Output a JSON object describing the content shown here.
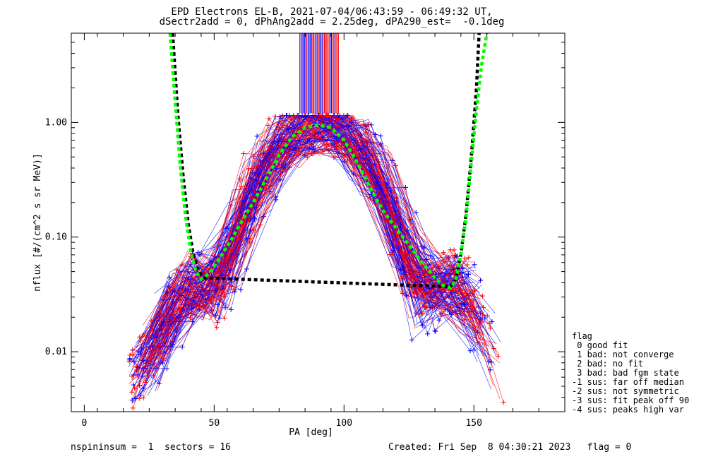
{
  "chart_data": {
    "type": "line",
    "title": "EPD Electrons EL-B, 2021-07-04/06:43:59 - 06:49:32 UT,",
    "subtitle": "dSectr2add = 0, dPhAng2add = 2.25deg, dPA290_est=  -0.1deg",
    "xlabel": "PA [deg]",
    "ylabel": "nflux [#/(cm^2 s sr MeV)]",
    "xlim": [
      -5,
      185
    ],
    "ylim": [
      0.003,
      6
    ],
    "yscale": "log",
    "xticks": [
      0,
      50,
      100,
      150
    ],
    "yticks": [
      0.01,
      0.1,
      1.0
    ],
    "ytick_labels": [
      "0.01",
      "0.10",
      "1.00"
    ],
    "grid": false,
    "series": [
      {
        "color": "#00ff00",
        "style": "dashed-fit",
        "x": [
          33,
          35,
          37,
          39,
          41,
          43,
          45,
          48,
          52,
          56,
          60,
          65,
          70,
          75,
          80,
          85,
          90,
          95,
          100,
          105,
          110,
          115,
          120,
          125,
          130,
          135,
          138,
          141,
          143,
          145,
          147,
          149,
          151,
          153,
          155
        ],
        "y": [
          6.0,
          1.5,
          0.4,
          0.15,
          0.075,
          0.05,
          0.043,
          0.048,
          0.065,
          0.09,
          0.13,
          0.2,
          0.32,
          0.52,
          0.75,
          0.9,
          0.95,
          0.9,
          0.7,
          0.45,
          0.27,
          0.17,
          0.12,
          0.085,
          0.06,
          0.044,
          0.038,
          0.036,
          0.042,
          0.07,
          0.15,
          0.45,
          1.3,
          3.2,
          6.0
        ]
      },
      {
        "color": "#000000",
        "style": "dashed-fit",
        "x": [
          34,
          36,
          38,
          40,
          42,
          44,
          46,
          139,
          141,
          143,
          145,
          147,
          149,
          151,
          152
        ],
        "y": [
          6.0,
          1.2,
          0.35,
          0.13,
          0.07,
          0.05,
          0.044,
          0.037,
          0.037,
          0.043,
          0.07,
          0.16,
          0.5,
          2.0,
          6.0
        ]
      }
    ],
    "data_cloud": {
      "colors": [
        "#ff0000",
        "#0000ff"
      ],
      "marker": "+",
      "pa_range": [
        17,
        162
      ],
      "peak_pa": 92,
      "peak_value": 1.0,
      "shoulder_value_min": 0.005,
      "shoulder_value_max": 0.05
    },
    "spike_region": {
      "pa_range": [
        83,
        98
      ],
      "y_from": 1.2,
      "y_to": 6.0
    }
  },
  "legend": {
    "title": "flag",
    "items": [
      " 0 good fit",
      " 1 bad: not converge",
      " 2 bad: no fit",
      " 3 bad: bad fgm state",
      "-1 sus: far off median",
      "-2 sus: not symmetric",
      "-3 sus: fit peak off 90",
      "-4 sus: peaks high var"
    ]
  },
  "footer": {
    "left": "nspininsum =  1  sectors = 16",
    "right": "Created: Fri Sep  8 04:30:21 2023   flag = 0"
  }
}
